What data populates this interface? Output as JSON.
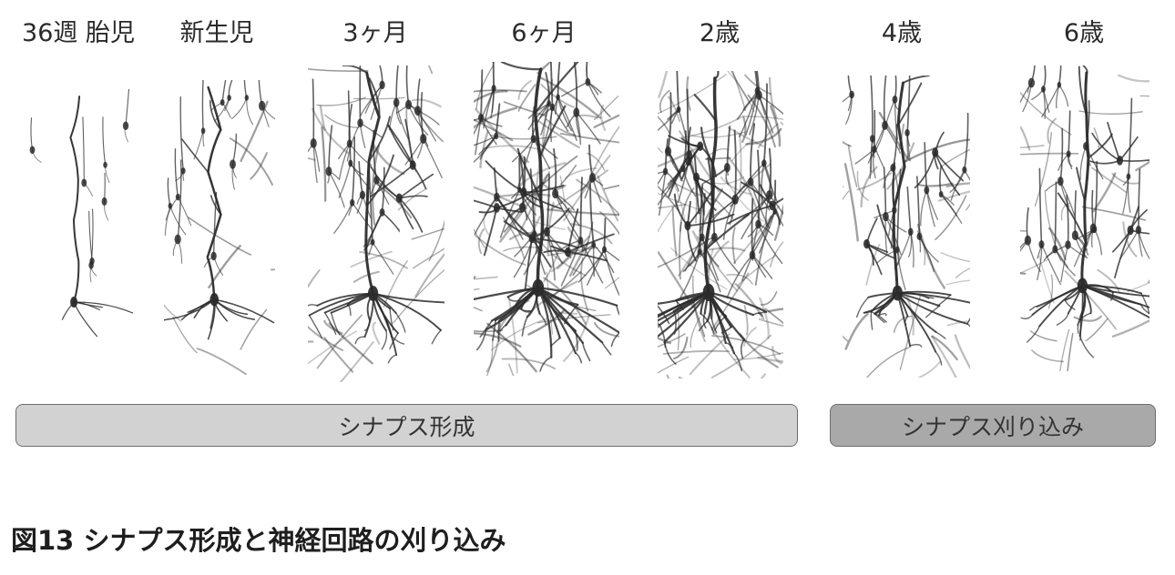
{
  "stages": [
    {
      "label": "36週 胎児"
    },
    {
      "label": "新生児"
    },
    {
      "label": "3ヶ月"
    },
    {
      "label": "6ヶ月"
    },
    {
      "label": "2歳"
    },
    {
      "label": "4歳"
    },
    {
      "label": "6歳"
    }
  ],
  "phases": {
    "formation": {
      "label": "シナプス形成",
      "color": "#d2d2d2"
    },
    "pruning": {
      "label": "シナプス刈り込み",
      "color": "#a9a9a9"
    }
  },
  "caption": "図13  シナプス形成と神経回路の刈り込み",
  "ink_color": "#2b2b2b"
}
